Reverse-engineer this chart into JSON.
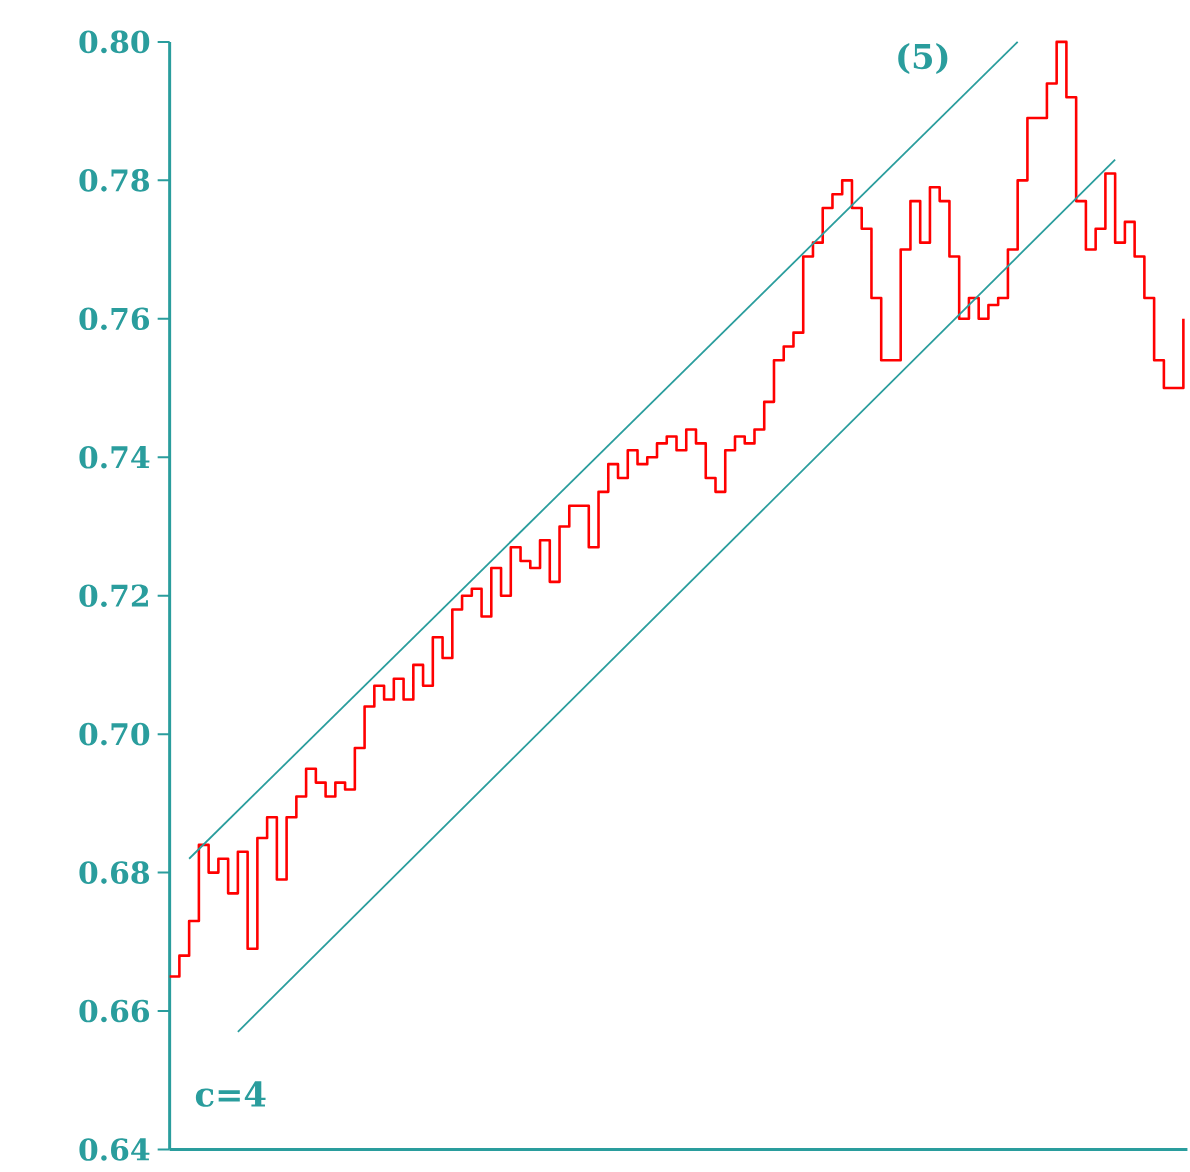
{
  "chart_data": {
    "type": "line",
    "categories": [
      null,
      null,
      null,
      null,
      null,
      null,
      null,
      null,
      null,
      null,
      null,
      null,
      null,
      null,
      null,
      null,
      null,
      null,
      null,
      null,
      null,
      null,
      null,
      null,
      null,
      null,
      null,
      null,
      null,
      null,
      null,
      null,
      null,
      null,
      null,
      null,
      null,
      null,
      null,
      null,
      null,
      null,
      null,
      null,
      null,
      null,
      null,
      null,
      null,
      null,
      null,
      null,
      null,
      null,
      null,
      null,
      null,
      null,
      null,
      null,
      null,
      null,
      null,
      null,
      null,
      null,
      null,
      null,
      null,
      null,
      null,
      null,
      null,
      null,
      null,
      null,
      null,
      null,
      null,
      null,
      null,
      null,
      null,
      null,
      null,
      null,
      null,
      null,
      null,
      null,
      null,
      null,
      null,
      null,
      null,
      null,
      null,
      null,
      null,
      null,
      null,
      null,
      null,
      null,
      null
    ],
    "ylim": [
      0.64,
      0.8
    ],
    "yticks": [
      0.64,
      0.66,
      0.68,
      {
        "value": 0.7,
        "label": "0.70"
      },
      0.72,
      0.74,
      0.76,
      0.78,
      {
        "value": 0.8,
        "label": "0.80"
      }
    ],
    "tick_labels": "y",
    "series": [
      {
        "type": "step",
        "color": "#ff0000",
        "values": [
          0.665,
          0.668,
          0.673,
          0.684,
          0.68,
          0.682,
          0.677,
          0.683,
          0.669,
          0.685,
          0.688,
          0.679,
          0.688,
          0.691,
          0.695,
          0.693,
          0.691,
          0.693,
          0.692,
          0.698,
          0.704,
          0.707,
          0.705,
          0.708,
          0.705,
          0.71,
          0.707,
          0.714,
          0.711,
          0.718,
          0.72,
          0.721,
          0.717,
          0.724,
          0.72,
          0.727,
          0.725,
          0.724,
          0.728,
          0.722,
          0.73,
          0.733,
          0.733,
          0.727,
          0.735,
          0.739,
          0.737,
          0.741,
          0.739,
          0.74,
          0.742,
          0.743,
          0.741,
          0.744,
          0.742,
          0.737,
          0.735,
          0.741,
          0.743,
          0.742,
          0.744,
          0.748,
          0.754,
          0.756,
          0.758,
          0.769,
          0.771,
          0.776,
          0.778,
          0.78,
          0.776,
          0.773,
          0.763,
          0.754,
          0.754,
          0.77,
          0.777,
          0.771,
          0.779,
          0.777,
          0.769,
          0.76,
          0.763,
          0.76,
          0.762,
          0.763,
          0.77,
          0.78,
          0.789,
          0.789,
          0.794,
          0.8,
          0.792,
          0.777,
          0.77,
          0.773,
          0.781,
          0.771,
          0.774,
          0.769,
          0.763,
          0.754,
          0.75,
          0.75,
          0.76
        ]
      },
      {
        "color": "#2a9d9d",
        "values": [
          null,
          null,
          0.682,
          null,
          null,
          null,
          null,
          null,
          null,
          null,
          null,
          null,
          null,
          null,
          null,
          null,
          null,
          null,
          null,
          null,
          null,
          null,
          null,
          null,
          null,
          null,
          null,
          null,
          null,
          null,
          null,
          null,
          null,
          null,
          null,
          null,
          null,
          null,
          null,
          null,
          null,
          null,
          null,
          null,
          null,
          null,
          null,
          null,
          null,
          null,
          null,
          null,
          null,
          null,
          null,
          null,
          null,
          null,
          null,
          null,
          null,
          null,
          null,
          null,
          null,
          null,
          null,
          null,
          null,
          null,
          null,
          null,
          null,
          null,
          null,
          null,
          null,
          null,
          null,
          null,
          null,
          null,
          null,
          null,
          null,
          null,
          null,
          0.8,
          null,
          null,
          null,
          null,
          null,
          null,
          null,
          null,
          null,
          null,
          null,
          null,
          null,
          null,
          null,
          null,
          null
        ]
      },
      {
        "color": "#2a9d9d",
        "values": [
          null,
          null,
          null,
          null,
          null,
          null,
          null,
          0.657,
          null,
          null,
          null,
          null,
          null,
          null,
          null,
          null,
          null,
          null,
          null,
          null,
          null,
          null,
          null,
          null,
          null,
          null,
          null,
          null,
          null,
          null,
          null,
          null,
          null,
          null,
          null,
          null,
          null,
          null,
          null,
          null,
          null,
          null,
          null,
          null,
          null,
          null,
          null,
          null,
          null,
          null,
          null,
          null,
          null,
          null,
          null,
          null,
          null,
          null,
          null,
          null,
          null,
          null,
          null,
          null,
          null,
          null,
          null,
          null,
          null,
          null,
          null,
          null,
          null,
          null,
          null,
          null,
          null,
          null,
          null,
          null,
          null,
          null,
          null,
          null,
          null,
          null,
          null,
          null,
          null,
          null,
          null,
          null,
          null,
          null,
          null,
          null,
          null,
          0.783,
          null,
          null,
          null,
          null,
          null,
          null,
          null
        ]
      }
    ],
    "annotations": [
      "(5)",
      "c=4"
    ]
  }
}
